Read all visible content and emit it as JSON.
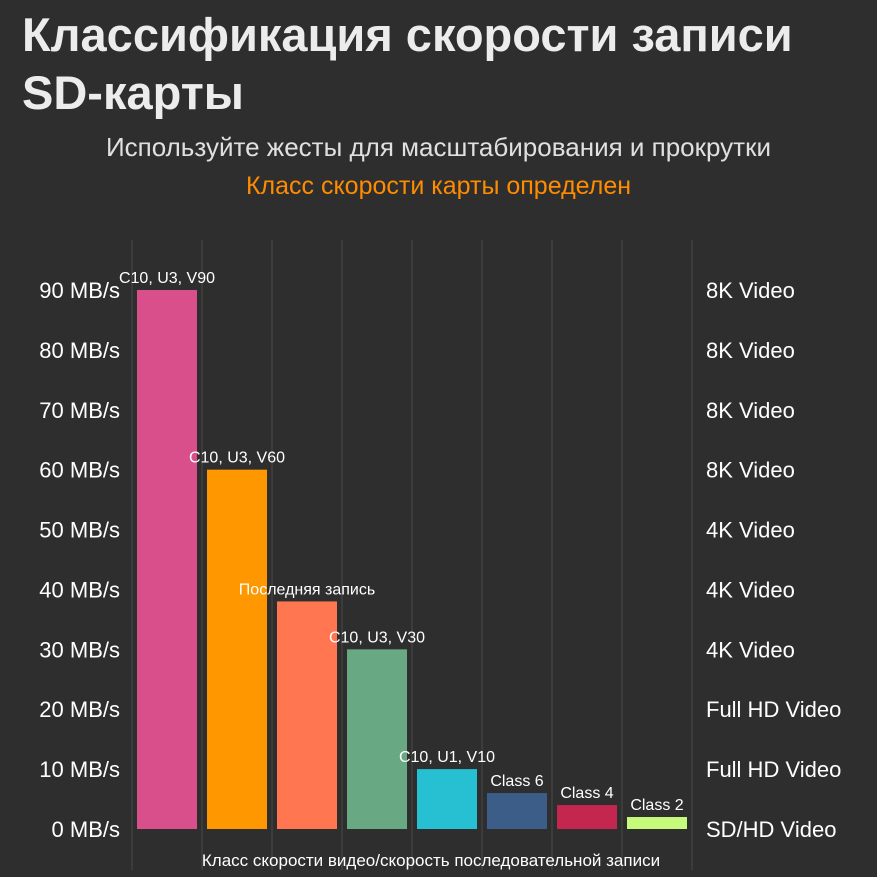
{
  "header": {
    "title": "Классификация скорости записи SD-карты",
    "subtitle": "Используйте жесты для масштабирования и прокрутки",
    "status": "Класс скорости карты определен"
  },
  "colors": {
    "background": "#2e2e2e",
    "grid": "#4a4a4a",
    "status_text": "#ff8c00"
  },
  "chart_data": {
    "type": "bar",
    "xlabel": "Класс скорости видео/скорость последовательной записи",
    "ylim": [
      0,
      90
    ],
    "grid": true,
    "y_ticks": [
      {
        "value": 0,
        "label": "0 MB/s",
        "right_label": "SD/HD Video"
      },
      {
        "value": 10,
        "label": "10 MB/s",
        "right_label": "Full HD Video"
      },
      {
        "value": 20,
        "label": "20 MB/s",
        "right_label": "Full HD Video"
      },
      {
        "value": 30,
        "label": "30 MB/s",
        "right_label": "4K Video"
      },
      {
        "value": 40,
        "label": "40 MB/s",
        "right_label": "4K Video"
      },
      {
        "value": 50,
        "label": "50 MB/s",
        "right_label": "4K Video"
      },
      {
        "value": 60,
        "label": "60 MB/s",
        "right_label": "8K Video"
      },
      {
        "value": 70,
        "label": "70 MB/s",
        "right_label": "8K Video"
      },
      {
        "value": 80,
        "label": "80 MB/s",
        "right_label": "8K Video"
      },
      {
        "value": 90,
        "label": "90 MB/s",
        "right_label": "8K Video"
      }
    ],
    "bars": [
      {
        "label": "C10, U3, V90",
        "value": 90,
        "color": "#d94f8c"
      },
      {
        "label": "C10, U3, V60",
        "value": 60,
        "color": "#ff9800"
      },
      {
        "label": "Последняя запись",
        "value": 38,
        "color": "#ff7650"
      },
      {
        "label": "C10, U3, V30",
        "value": 30,
        "color": "#68a882"
      },
      {
        "label": "C10, U1, V10",
        "value": 10,
        "color": "#27bfd2"
      },
      {
        "label": "Class 6",
        "value": 6,
        "color": "#3b5d88"
      },
      {
        "label": "Class 4",
        "value": 4,
        "color": "#c52650"
      },
      {
        "label": "Class 2",
        "value": 2,
        "color": "#c6fa7a"
      }
    ]
  }
}
